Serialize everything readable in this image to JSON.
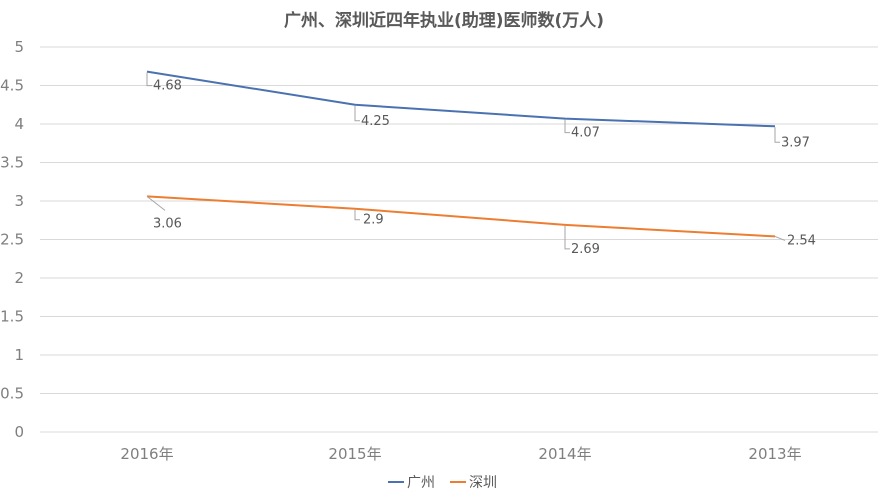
{
  "chart_data": {
    "type": "line",
    "title": "广州、深圳近四年执业(助理)医师数(万人)",
    "categories": [
      "2016年",
      "2015年",
      "2014年",
      "2013年"
    ],
    "series": [
      {
        "name": "广州",
        "values": [
          4.68,
          4.25,
          4.07,
          3.97
        ],
        "labels": [
          "4.68",
          "4.25",
          "4.07",
          "3.97"
        ],
        "color": "#4a72b0"
      },
      {
        "name": "深圳",
        "values": [
          3.06,
          2.9,
          2.69,
          2.54
        ],
        "labels": [
          "3.06",
          "2.9",
          "2.69",
          "2.54"
        ],
        "color": "#ed7d31"
      }
    ],
    "ylim": [
      0,
      5
    ],
    "yticks": [
      "0",
      "0.5",
      "1",
      "1.5",
      "2",
      "2.5",
      "3",
      "3.5",
      "4",
      "4.5",
      "5"
    ],
    "grid": true,
    "legend_position": "bottom",
    "gridline_color": "#d9d9d9",
    "leader_color": "#a6a6a6"
  }
}
